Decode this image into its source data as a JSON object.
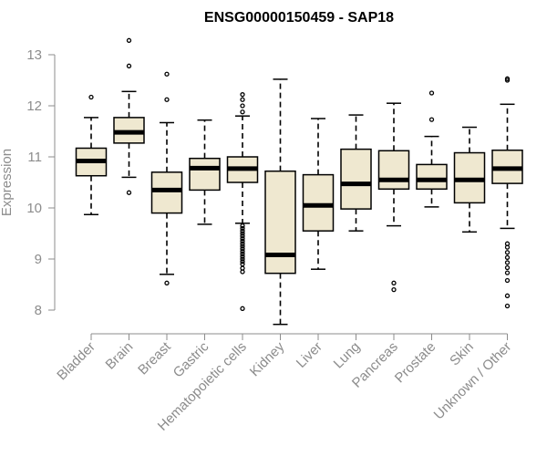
{
  "chart_data": {
    "type": "boxplot",
    "title": "ENSG00000150459 - SAP18",
    "ylabel": "Expression",
    "xlabel": "",
    "ylim": [
      7.7,
      13.3
    ],
    "yticks": [
      8,
      9,
      10,
      11,
      12,
      13
    ],
    "box_fill": "#efe8d0",
    "categories": [
      "Bladder",
      "Brain",
      "Breast",
      "Gastric",
      "Hematopoietic cells",
      "Kidney",
      "Liver",
      "Lung",
      "Pancreas",
      "Prostate",
      "Skin",
      "Unknown / Other"
    ],
    "boxes": [
      {
        "whisker_low": 9.87,
        "q1": 10.63,
        "median": 10.92,
        "q3": 11.17,
        "whisker_high": 11.77,
        "outliers": [
          12.17
        ]
      },
      {
        "whisker_low": 10.6,
        "q1": 11.27,
        "median": 11.48,
        "q3": 11.77,
        "whisker_high": 12.28,
        "outliers": [
          10.3,
          12.78,
          13.28
        ]
      },
      {
        "whisker_low": 8.7,
        "q1": 9.9,
        "median": 10.35,
        "q3": 10.7,
        "whisker_high": 11.67,
        "outliers": [
          8.53,
          12.12,
          12.62
        ]
      },
      {
        "whisker_low": 9.68,
        "q1": 10.35,
        "median": 10.78,
        "q3": 10.97,
        "whisker_high": 11.72,
        "outliers": []
      },
      {
        "whisker_low": 9.7,
        "q1": 10.5,
        "median": 10.77,
        "q3": 11.0,
        "whisker_high": 11.8,
        "outliers": [
          8.03,
          8.75,
          8.82,
          8.9,
          8.95,
          9.0,
          9.05,
          9.1,
          9.15,
          9.2,
          9.25,
          9.3,
          9.35,
          9.4,
          9.45,
          9.5,
          9.55,
          9.6,
          9.65,
          11.88,
          12.0,
          12.12,
          12.22
        ]
      },
      {
        "whisker_low": 7.72,
        "q1": 8.72,
        "median": 9.08,
        "q3": 10.72,
        "whisker_high": 12.52,
        "outliers": []
      },
      {
        "whisker_low": 8.8,
        "q1": 9.55,
        "median": 10.05,
        "q3": 10.65,
        "whisker_high": 11.75,
        "outliers": []
      },
      {
        "whisker_low": 9.55,
        "q1": 9.98,
        "median": 10.47,
        "q3": 11.15,
        "whisker_high": 11.82,
        "outliers": []
      },
      {
        "whisker_low": 9.65,
        "q1": 10.37,
        "median": 10.55,
        "q3": 11.12,
        "whisker_high": 12.05,
        "outliers": [
          8.4,
          8.53
        ]
      },
      {
        "whisker_low": 10.02,
        "q1": 10.37,
        "median": 10.55,
        "q3": 10.85,
        "whisker_high": 11.4,
        "outliers": [
          11.73,
          12.25
        ]
      },
      {
        "whisker_low": 9.53,
        "q1": 10.1,
        "median": 10.55,
        "q3": 11.08,
        "whisker_high": 11.58,
        "outliers": []
      },
      {
        "whisker_low": 9.6,
        "q1": 10.48,
        "median": 10.77,
        "q3": 11.13,
        "whisker_high": 12.03,
        "outliers": [
          8.08,
          8.28,
          8.58,
          8.73,
          8.83,
          8.93,
          9.03,
          9.13,
          9.23,
          9.3,
          12.5,
          12.53
        ]
      }
    ]
  }
}
